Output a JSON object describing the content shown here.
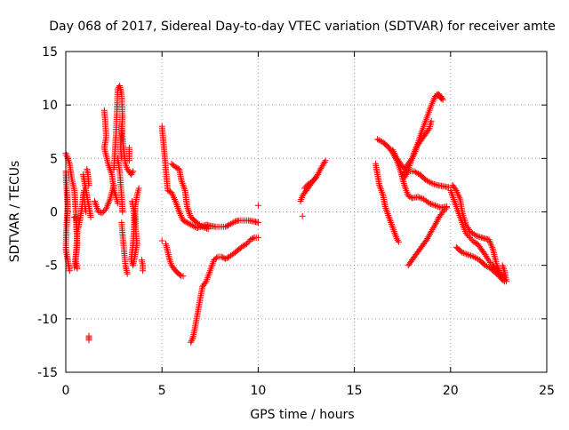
{
  "chart_data": {
    "type": "scatter",
    "title": "Day 068 of 2017, Sidereal Day-to-day VTEC variation (SDTVAR) for receiver amte",
    "xlabel": "GPS time / hours",
    "ylabel": "SDTVAR / TECUs",
    "xlim": [
      0,
      25
    ],
    "ylim": [
      -15,
      15
    ],
    "xticks": [
      0,
      5,
      10,
      15,
      20,
      25
    ],
    "yticks": [
      -15,
      -10,
      -5,
      0,
      5,
      10,
      15
    ],
    "grid": true,
    "legend": "none",
    "marker": "plus",
    "color": "#ff0000",
    "segments": [
      [
        [
          0.0,
          5.5
        ],
        [
          0.2,
          4.5
        ],
        [
          0.3,
          3.2
        ],
        [
          0.45,
          2.0
        ],
        [
          0.5,
          0.5
        ],
        [
          0.55,
          -1.5
        ],
        [
          0.6,
          -3.0
        ],
        [
          0.5,
          -4.5
        ],
        [
          0.45,
          -5.2
        ]
      ],
      [
        [
          0.0,
          3.8
        ],
        [
          0.05,
          2.0
        ],
        [
          0.1,
          0.5
        ],
        [
          0.05,
          -1.0
        ],
        [
          0.0,
          -3.5
        ],
        [
          0.1,
          -4.5
        ],
        [
          0.2,
          -5.5
        ]
      ],
      [
        [
          0.45,
          -0.5
        ],
        [
          0.55,
          -0.5
        ],
        [
          0.6,
          -2.0
        ],
        [
          0.55,
          -3.5
        ],
        [
          0.5,
          -4.5
        ],
        [
          0.6,
          -5.3
        ]
      ],
      [
        [
          0.65,
          -1.5
        ],
        [
          0.75,
          -0.5
        ],
        [
          0.85,
          0.5
        ],
        [
          0.9,
          1.5
        ],
        [
          0.95,
          2.0
        ],
        [
          1.0,
          0.5
        ],
        [
          1.05,
          0.0
        ]
      ],
      [
        [
          0.9,
          3.5
        ],
        [
          1.0,
          2.5
        ],
        [
          1.1,
          1.5
        ],
        [
          1.2,
          0.5
        ],
        [
          1.3,
          -0.5
        ]
      ],
      [
        [
          1.1,
          4.0
        ],
        [
          1.15,
          3.5
        ],
        [
          1.2,
          2.5
        ]
      ],
      [
        [
          1.5,
          1.0
        ],
        [
          1.7,
          0.0
        ],
        [
          1.9,
          -0.1
        ],
        [
          2.1,
          0.3
        ],
        [
          2.3,
          1.2
        ],
        [
          2.5,
          2.5
        ]
      ],
      [
        [
          2.0,
          9.5
        ],
        [
          2.05,
          8.5
        ],
        [
          2.1,
          7.0
        ],
        [
          2.0,
          6.0
        ],
        [
          2.2,
          4.5
        ],
        [
          2.4,
          3.5
        ],
        [
          2.5,
          2.0
        ],
        [
          2.6,
          1.5
        ],
        [
          2.7,
          0.8
        ]
      ],
      [
        [
          2.5,
          4.0
        ],
        [
          2.55,
          5.5
        ],
        [
          2.6,
          7.0
        ],
        [
          2.65,
          9.0
        ],
        [
          2.7,
          11.5
        ],
        [
          2.8,
          11.8
        ],
        [
          2.9,
          11.0
        ],
        [
          2.95,
          9.0
        ],
        [
          2.9,
          7.5
        ],
        [
          2.85,
          6.0
        ],
        [
          2.9,
          5.0
        ]
      ],
      [
        [
          2.7,
          5.0
        ],
        [
          2.8,
          3.8
        ],
        [
          2.9,
          1.5
        ],
        [
          2.95,
          0.0
        ]
      ],
      [
        [
          2.9,
          8.0
        ],
        [
          3.0,
          6.0
        ],
        [
          3.1,
          4.5
        ],
        [
          3.2,
          4.0
        ],
        [
          3.4,
          3.5
        ],
        [
          3.5,
          3.8
        ]
      ],
      [
        [
          2.9,
          -1.0
        ],
        [
          3.0,
          -3.0
        ],
        [
          3.1,
          -5.0
        ],
        [
          3.2,
          -5.8
        ]
      ],
      [
        [
          3.3,
          6.0
        ],
        [
          3.3,
          4.8
        ]
      ],
      [
        [
          3.45,
          1.0
        ],
        [
          3.55,
          0.0
        ],
        [
          3.55,
          -1.5
        ],
        [
          3.5,
          -3.0
        ],
        [
          3.4,
          -4.5
        ],
        [
          3.5,
          -5.0
        ],
        [
          3.6,
          -4.0
        ],
        [
          3.7,
          -3.0
        ],
        [
          3.65,
          -2.0
        ],
        [
          3.6,
          0.5
        ],
        [
          3.7,
          1.5
        ],
        [
          3.8,
          2.2
        ]
      ],
      [
        [
          3.95,
          -4.5
        ],
        [
          4.0,
          -5.0
        ],
        [
          4.0,
          -5.5
        ]
      ],
      [
        [
          5.0,
          8.0
        ],
        [
          5.05,
          7.0
        ],
        [
          5.1,
          6.0
        ],
        [
          5.15,
          5.0
        ],
        [
          5.2,
          4.0
        ],
        [
          5.25,
          3.0
        ],
        [
          5.3,
          2.0
        ],
        [
          5.5,
          1.8
        ],
        [
          5.7,
          1.0
        ],
        [
          5.9,
          0.0
        ],
        [
          6.1,
          -0.8
        ],
        [
          6.3,
          -1.0
        ],
        [
          6.5,
          -1.2
        ],
        [
          6.8,
          -1.5
        ],
        [
          7.0,
          -1.4
        ],
        [
          7.3,
          -1.2
        ],
        [
          7.5,
          -1.3
        ],
        [
          7.8,
          -1.4
        ],
        [
          8.0,
          -1.4
        ],
        [
          8.3,
          -1.4
        ],
        [
          8.5,
          -1.2
        ],
        [
          8.8,
          -0.9
        ],
        [
          9.0,
          -0.8
        ],
        [
          9.3,
          -0.8
        ],
        [
          9.5,
          -0.8
        ],
        [
          9.8,
          -0.9
        ],
        [
          10.0,
          -1.0
        ]
      ],
      [
        [
          5.5,
          4.5
        ],
        [
          5.7,
          4.2
        ],
        [
          5.9,
          4.0
        ],
        [
          6.0,
          3.0
        ],
        [
          6.2,
          2.0
        ],
        [
          6.3,
          0.5
        ],
        [
          6.5,
          -0.5
        ],
        [
          6.8,
          -1.0
        ],
        [
          7.1,
          -1.4
        ],
        [
          7.4,
          -1.6
        ]
      ],
      [
        [
          5.2,
          -3.0
        ],
        [
          5.4,
          -4.5
        ],
        [
          5.5,
          -5.0
        ],
        [
          5.7,
          -5.5
        ],
        [
          6.0,
          -6.0
        ],
        [
          6.1,
          -6.0
        ]
      ],
      [
        [
          6.5,
          -12.2
        ],
        [
          6.6,
          -11.8
        ],
        [
          6.7,
          -11.0
        ],
        [
          6.8,
          -10.0
        ],
        [
          6.9,
          -9.0
        ],
        [
          7.0,
          -8.0
        ],
        [
          7.1,
          -7.0
        ],
        [
          7.3,
          -6.5
        ],
        [
          7.5,
          -5.5
        ],
        [
          7.7,
          -4.5
        ],
        [
          7.9,
          -4.2
        ],
        [
          8.1,
          -4.2
        ],
        [
          8.3,
          -4.4
        ],
        [
          8.5,
          -4.2
        ],
        [
          8.8,
          -3.8
        ],
        [
          9.0,
          -3.5
        ],
        [
          9.2,
          -3.2
        ],
        [
          9.4,
          -3.0
        ],
        [
          9.6,
          -2.6
        ],
        [
          9.8,
          -2.4
        ],
        [
          10.0,
          -2.4
        ]
      ],
      [
        [
          10.0,
          0.6
        ]
      ],
      [
        [
          5.0,
          -2.7
        ]
      ],
      [
        [
          1.2,
          -11.6
        ],
        [
          1.2,
          -12.0
        ]
      ],
      [
        [
          12.3,
          -0.4
        ]
      ],
      [
        [
          12.2,
          1.0
        ],
        [
          12.3,
          1.5
        ],
        [
          12.5,
          2.0
        ],
        [
          12.7,
          2.5
        ],
        [
          12.9,
          3.0
        ],
        [
          13.1,
          3.5
        ],
        [
          13.3,
          4.2
        ],
        [
          13.5,
          4.8
        ]
      ],
      [
        [
          12.4,
          2.2
        ],
        [
          12.6,
          2.6
        ],
        [
          12.8,
          2.8
        ],
        [
          13.0,
          3.2
        ]
      ],
      [
        [
          16.1,
          4.5
        ],
        [
          16.2,
          3.5
        ],
        [
          16.3,
          2.5
        ],
        [
          16.5,
          1.5
        ],
        [
          16.6,
          0.5
        ],
        [
          16.8,
          -0.5
        ],
        [
          17.0,
          -1.5
        ],
        [
          17.1,
          -2.0
        ],
        [
          17.2,
          -2.5
        ],
        [
          17.3,
          -2.8
        ]
      ],
      [
        [
          16.2,
          6.8
        ],
        [
          16.5,
          6.5
        ],
        [
          16.8,
          6.0
        ],
        [
          17.0,
          5.5
        ],
        [
          17.2,
          4.8
        ],
        [
          17.4,
          3.8
        ],
        [
          17.6,
          2.5
        ],
        [
          17.8,
          1.5
        ],
        [
          18.0,
          1.3
        ],
        [
          18.3,
          1.4
        ],
        [
          18.6,
          1.2
        ],
        [
          18.9,
          0.8
        ],
        [
          19.2,
          0.6
        ],
        [
          19.5,
          0.4
        ],
        [
          19.8,
          0.5
        ]
      ],
      [
        [
          17.0,
          5.8
        ],
        [
          17.2,
          5.0
        ],
        [
          17.4,
          4.5
        ],
        [
          17.6,
          4.0
        ],
        [
          17.8,
          4.5
        ],
        [
          18.0,
          5.0
        ],
        [
          18.2,
          5.8
        ],
        [
          18.4,
          7.0
        ],
        [
          18.6,
          8.0
        ],
        [
          18.8,
          9.0
        ],
        [
          19.0,
          10.0
        ],
        [
          19.2,
          10.8
        ],
        [
          19.4,
          11.0
        ],
        [
          19.5,
          10.6
        ]
      ],
      [
        [
          17.5,
          3.5
        ],
        [
          17.8,
          4.0
        ],
        [
          18.0,
          5.0
        ],
        [
          18.2,
          6.0
        ],
        [
          18.5,
          6.8
        ],
        [
          18.7,
          7.3
        ],
        [
          18.9,
          7.8
        ],
        [
          19.0,
          8.5
        ]
      ],
      [
        [
          17.6,
          3.2
        ],
        [
          17.8,
          3.8
        ],
        [
          18.1,
          3.8
        ],
        [
          18.4,
          3.5
        ],
        [
          18.7,
          3.0
        ],
        [
          19.0,
          2.7
        ],
        [
          19.3,
          2.5
        ],
        [
          19.6,
          2.4
        ],
        [
          19.9,
          2.3
        ]
      ],
      [
        [
          17.8,
          -5.0
        ],
        [
          18.0,
          -4.5
        ],
        [
          18.2,
          -4.0
        ],
        [
          18.4,
          -3.5
        ],
        [
          18.6,
          -3.0
        ],
        [
          18.8,
          -2.5
        ],
        [
          19.0,
          -1.8
        ],
        [
          19.2,
          -1.2
        ],
        [
          19.4,
          -0.5
        ],
        [
          19.6,
          0.0
        ],
        [
          19.8,
          0.4
        ]
      ],
      [
        [
          19.5,
          10.8
        ],
        [
          19.6,
          10.5
        ],
        [
          19.3,
          11.0
        ]
      ],
      [
        [
          20.0,
          2.0
        ],
        [
          20.2,
          1.0
        ],
        [
          20.4,
          0.0
        ],
        [
          20.6,
          -1.0
        ],
        [
          20.8,
          -2.0
        ],
        [
          21.0,
          -2.4
        ],
        [
          21.2,
          -2.8
        ],
        [
          21.4,
          -3.0
        ],
        [
          21.6,
          -3.5
        ],
        [
          21.8,
          -4.0
        ],
        [
          22.0,
          -4.6
        ],
        [
          22.2,
          -5.0
        ],
        [
          22.4,
          -5.5
        ],
        [
          22.6,
          -6.2
        ],
        [
          22.8,
          -6.5
        ]
      ],
      [
        [
          20.1,
          2.5
        ],
        [
          20.3,
          2.0
        ],
        [
          20.5,
          1.2
        ],
        [
          20.6,
          0.0
        ],
        [
          20.8,
          -1.2
        ],
        [
          21.0,
          -1.8
        ],
        [
          21.3,
          -2.2
        ],
        [
          21.6,
          -2.4
        ],
        [
          21.8,
          -2.5
        ],
        [
          22.0,
          -2.6
        ],
        [
          22.2,
          -3.5
        ],
        [
          22.4,
          -5.0
        ],
        [
          22.6,
          -5.8
        ],
        [
          22.8,
          -6.0
        ]
      ],
      [
        [
          20.3,
          -3.3
        ],
        [
          20.6,
          -3.8
        ],
        [
          20.9,
          -4.0
        ],
        [
          21.2,
          -4.2
        ],
        [
          21.5,
          -4.5
        ],
        [
          21.8,
          -5.0
        ],
        [
          22.1,
          -5.3
        ],
        [
          22.4,
          -5.8
        ],
        [
          22.6,
          -6.0
        ],
        [
          22.8,
          -6.4
        ]
      ],
      [
        [
          22.7,
          -5.0
        ],
        [
          22.8,
          -5.5
        ],
        [
          22.85,
          -6.0
        ],
        [
          22.9,
          -6.5
        ]
      ]
    ]
  }
}
